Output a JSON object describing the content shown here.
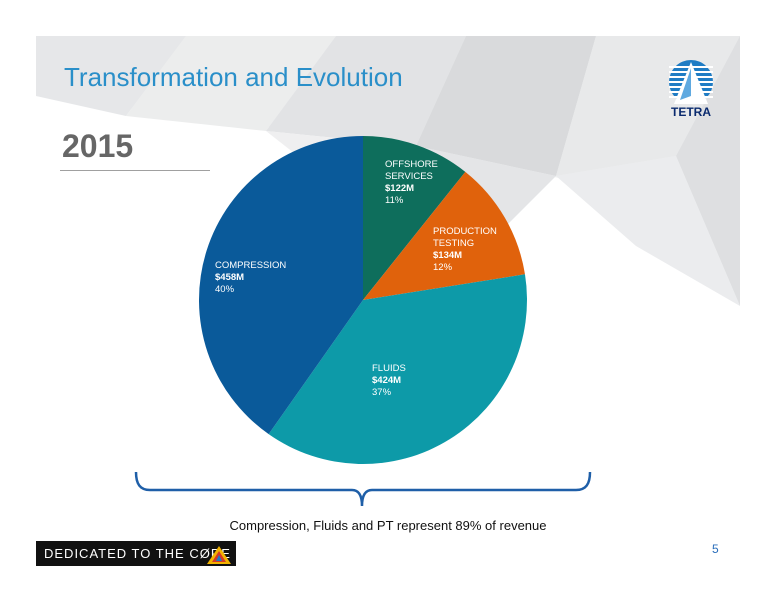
{
  "slide": {
    "title": "Transformation and Evolution",
    "year": "2015",
    "caption": "Compression, Fluids and PT represent 89% of revenue",
    "footer_text": "DEDICATED TO THE CØRE",
    "page_number": "5",
    "logo_text": "TETRA"
  },
  "colors": {
    "title": "#2a8fc9",
    "offshore": "#0e6e5c",
    "production": "#e0620c",
    "fluids": "#0d9aa8",
    "compression": "#0a5a9a",
    "bracket": "#1f5fa8"
  },
  "chart_data": {
    "type": "pie",
    "title": "2015",
    "slices": [
      {
        "name": "OFFSHORE SERVICES",
        "value": 122,
        "value_label": "$122M",
        "percent": 11,
        "percent_label": "11%",
        "color": "#0e6e5c"
      },
      {
        "name": "PRODUCTION TESTING",
        "value": 134,
        "value_label": "$134M",
        "percent": 12,
        "percent_label": "12%",
        "color": "#e0620c"
      },
      {
        "name": "FLUIDS",
        "value": 424,
        "value_label": "$424M",
        "percent": 37,
        "percent_label": "37%",
        "color": "#0d9aa8"
      },
      {
        "name": "COMPRESSION",
        "value": 458,
        "value_label": "$458M",
        "percent": 40,
        "percent_label": "40%",
        "color": "#0a5a9a"
      }
    ],
    "start": "12 o'clock",
    "direction": "clockwise",
    "legend": "none"
  }
}
